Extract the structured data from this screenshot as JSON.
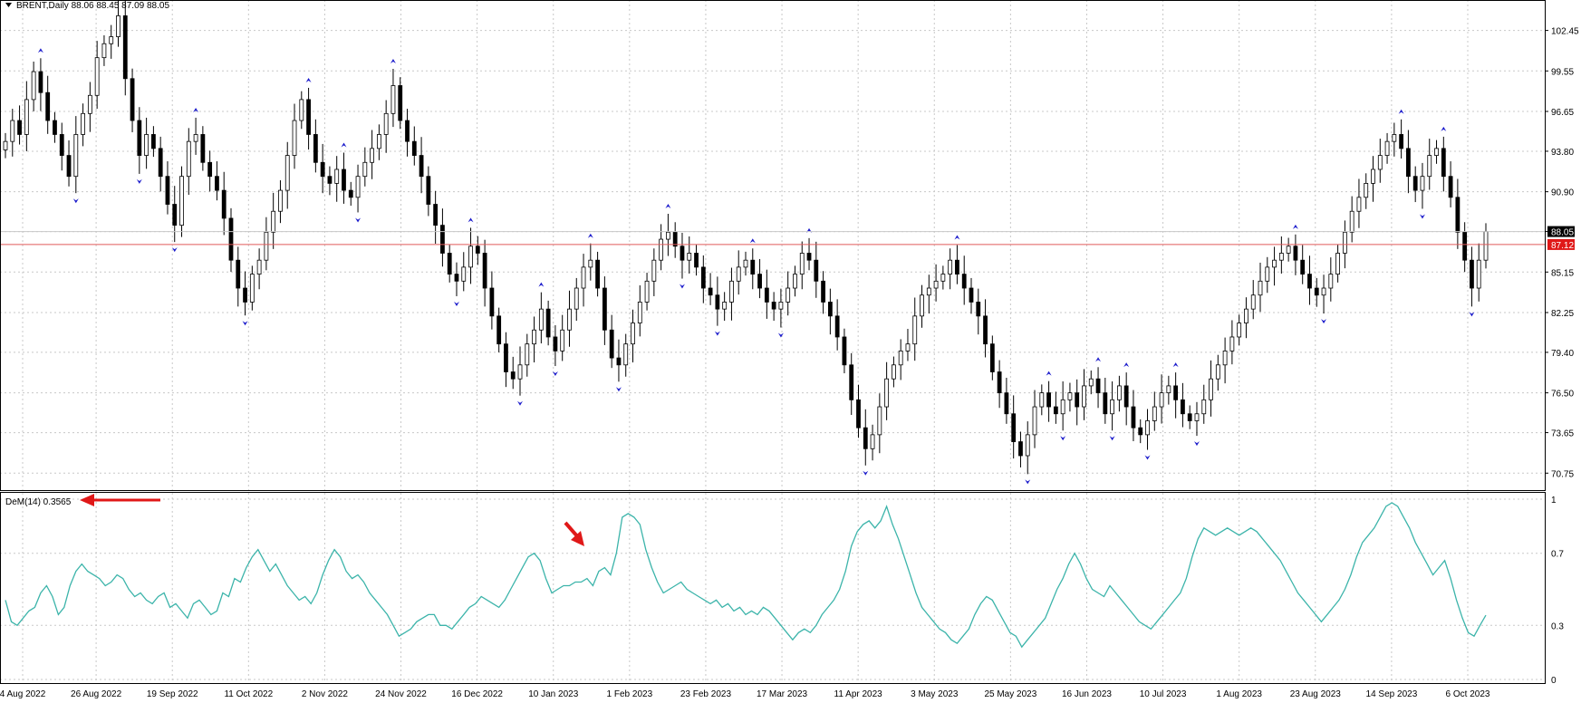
{
  "main": {
    "symbol_header": "BRENT,Daily  88.06 88.45 87.09 88.05",
    "y_ticks": [
      "102.45",
      "99.55",
      "96.65",
      "93.80",
      "90.90",
      "88.05",
      "85.15",
      "82.25",
      "79.40",
      "76.50",
      "73.65",
      "70.75"
    ],
    "current_price_label": "88.05",
    "line_price_label": "87.12",
    "colors": {
      "bull": "#ffffff",
      "bear": "#000000",
      "wick": "#000000",
      "fractal": "#1c1ccc",
      "hline": "#e05a5a",
      "grid": "#c8c8c8"
    }
  },
  "indicator": {
    "header": "DeM(14) 0.3565",
    "y_ticks": [
      "1",
      "0.7",
      "0.3",
      "0"
    ],
    "line_color": "#3cb4aa",
    "arrow_color": "#e01818"
  },
  "x_ticks": [
    "4 Aug 2022",
    "26 Aug 2022",
    "19 Sep 2022",
    "11 Oct 2022",
    "2 Nov 2022",
    "24 Nov 2022",
    "16 Dec 2022",
    "10 Jan 2023",
    "1 Feb 2023",
    "23 Feb 2023",
    "17 Mar 2023",
    "11 Apr 2023",
    "3 May 2023",
    "25 May 2023",
    "16 Jun 2023",
    "10 Jul 2023",
    "1 Aug 2023",
    "23 Aug 2023",
    "14 Sep 2023",
    "6 Oct 2023"
  ],
  "chart_data": [
    {
      "type": "candlestick",
      "title": "BRENT,Daily",
      "ylim": [
        69.6,
        104.5
      ],
      "horizontal_line": 87.12,
      "last_price": 88.05,
      "close_series_approx": [
        94.5,
        96.0,
        95.0,
        97.5,
        99.5,
        98.0,
        96.0,
        95.0,
        93.5,
        92.0,
        95.0,
        96.5,
        97.8,
        100.5,
        101.5,
        102.0,
        103.5,
        99.0,
        96.0,
        93.5,
        95.0,
        94.0,
        92.0,
        90.0,
        88.5,
        92.0,
        94.5,
        95.0,
        93.0,
        92.0,
        91.0,
        89.0,
        86.0,
        84.0,
        83.0,
        85.0,
        86.0,
        88.0,
        89.5,
        91.0,
        93.5,
        96.0,
        97.5,
        95.0,
        93.0,
        92.0,
        91.5,
        92.5,
        91.0,
        90.5,
        92.0,
        93.0,
        94.0,
        95.0,
        96.5,
        98.5,
        96.0,
        94.5,
        93.5,
        92.0,
        90.0,
        88.5,
        86.5,
        85.0,
        84.5,
        85.5,
        87.0,
        86.5,
        84.0,
        82.0,
        80.0,
        78.0,
        77.5,
        78.5,
        80.0,
        81.0,
        82.5,
        80.5,
        79.5,
        81.0,
        82.5,
        84.0,
        85.5,
        86.0,
        84.0,
        81.0,
        79.0,
        78.5,
        80.0,
        81.5,
        83.0,
        84.5,
        86.0,
        87.5,
        88.0,
        87.0,
        86.0,
        86.5,
        85.5,
        84.0,
        83.5,
        82.5,
        83.0,
        84.5,
        85.5,
        86.0,
        85.0,
        84.0,
        83.0,
        82.5,
        83.0,
        84.0,
        85.0,
        86.5,
        86.0,
        84.5,
        83.0,
        82.0,
        80.5,
        78.5,
        76.0,
        74.0,
        72.5,
        73.5,
        75.5,
        77.5,
        78.5,
        79.5,
        80.0,
        82.0,
        83.5,
        84.0,
        84.5,
        85.0,
        86.0,
        85.0,
        84.0,
        83.0,
        82.0,
        80.0,
        78.0,
        76.5,
        75.0,
        73.0,
        72.0,
        73.5,
        75.5,
        76.5,
        75.5,
        75.0,
        76.0,
        76.5,
        75.5,
        77.0,
        77.5,
        76.5,
        75.0,
        76.0,
        77.0,
        75.5,
        74.0,
        73.5,
        74.5,
        75.5,
        76.5,
        77.0,
        76.0,
        75.0,
        74.5,
        75.0,
        76.0,
        77.5,
        78.5,
        79.5,
        80.5,
        81.5,
        82.5,
        83.5,
        84.5,
        85.5,
        86.0,
        86.5,
        87.0,
        86.0,
        85.0,
        84.0,
        83.5,
        84.0,
        85.0,
        86.5,
        88.0,
        89.5,
        90.5,
        91.5,
        92.5,
        93.5,
        94.5,
        95.0,
        94.0,
        92.0,
        91.0,
        92.0,
        93.5,
        94.0,
        92.0,
        90.5,
        88.0,
        86.0,
        84.0,
        86.0,
        88.05
      ]
    },
    {
      "type": "line",
      "title": "DeM(14) 0.3565",
      "ylim": [
        0,
        1
      ],
      "values": [
        0.44,
        0.32,
        0.3,
        0.34,
        0.38,
        0.4,
        0.48,
        0.52,
        0.46,
        0.36,
        0.4,
        0.52,
        0.6,
        0.64,
        0.6,
        0.58,
        0.56,
        0.52,
        0.54,
        0.58,
        0.56,
        0.5,
        0.46,
        0.48,
        0.44,
        0.42,
        0.46,
        0.48,
        0.4,
        0.42,
        0.38,
        0.34,
        0.42,
        0.44,
        0.4,
        0.36,
        0.38,
        0.48,
        0.46,
        0.56,
        0.54,
        0.62,
        0.68,
        0.72,
        0.66,
        0.6,
        0.64,
        0.58,
        0.52,
        0.48,
        0.44,
        0.46,
        0.42,
        0.48,
        0.58,
        0.66,
        0.72,
        0.68,
        0.6,
        0.56,
        0.58,
        0.54,
        0.48,
        0.44,
        0.4,
        0.36,
        0.3,
        0.24,
        0.26,
        0.28,
        0.32,
        0.34,
        0.36,
        0.36,
        0.3,
        0.3,
        0.28,
        0.32,
        0.36,
        0.4,
        0.42,
        0.46,
        0.44,
        0.42,
        0.4,
        0.44,
        0.5,
        0.56,
        0.62,
        0.68,
        0.7,
        0.66,
        0.56,
        0.48,
        0.5,
        0.52,
        0.52,
        0.54,
        0.54,
        0.56,
        0.52,
        0.6,
        0.62,
        0.58,
        0.7,
        0.9,
        0.92,
        0.9,
        0.86,
        0.72,
        0.62,
        0.54,
        0.48,
        0.5,
        0.52,
        0.54,
        0.5,
        0.48,
        0.46,
        0.44,
        0.42,
        0.44,
        0.4,
        0.42,
        0.38,
        0.4,
        0.36,
        0.38,
        0.36,
        0.4,
        0.38,
        0.34,
        0.3,
        0.26,
        0.22,
        0.26,
        0.28,
        0.26,
        0.3,
        0.36,
        0.4,
        0.44,
        0.5,
        0.6,
        0.74,
        0.82,
        0.86,
        0.88,
        0.84,
        0.88,
        0.96,
        0.86,
        0.78,
        0.68,
        0.58,
        0.48,
        0.4,
        0.36,
        0.32,
        0.28,
        0.26,
        0.22,
        0.2,
        0.24,
        0.28,
        0.36,
        0.42,
        0.46,
        0.44,
        0.38,
        0.32,
        0.26,
        0.24,
        0.18,
        0.22,
        0.26,
        0.3,
        0.34,
        0.42,
        0.5,
        0.56,
        0.64,
        0.7,
        0.64,
        0.56,
        0.5,
        0.48,
        0.46,
        0.52,
        0.48,
        0.44,
        0.4,
        0.36,
        0.32,
        0.3,
        0.28,
        0.32,
        0.36,
        0.4,
        0.44,
        0.48,
        0.56,
        0.68,
        0.78,
        0.84,
        0.82,
        0.8,
        0.82,
        0.84,
        0.82,
        0.8,
        0.82,
        0.84,
        0.82,
        0.78,
        0.74,
        0.7,
        0.66,
        0.6,
        0.54,
        0.48,
        0.44,
        0.4,
        0.36,
        0.32,
        0.36,
        0.4,
        0.44,
        0.5,
        0.58,
        0.68,
        0.76,
        0.8,
        0.84,
        0.9,
        0.96,
        0.98,
        0.96,
        0.9,
        0.84,
        0.76,
        0.7,
        0.64,
        0.58,
        0.62,
        0.66,
        0.56,
        0.44,
        0.34,
        0.26,
        0.24,
        0.3,
        0.3565
      ]
    }
  ]
}
